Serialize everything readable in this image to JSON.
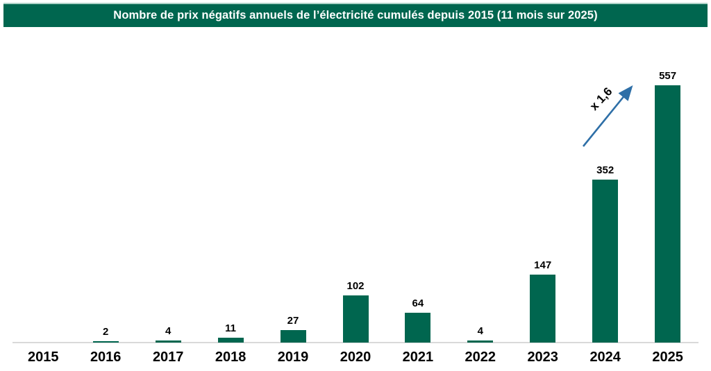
{
  "header": {
    "title": "Nombre de prix négatifs annuels de l’électricité cumulés depuis 2015 (11 mois sur 2025)"
  },
  "chart_data": {
    "type": "bar",
    "title": "Nombre de prix négatifs annuels de l’électricité cumulés depuis 2015 (11 mois sur 2025)",
    "categories": [
      "2015",
      "2016",
      "2017",
      "2018",
      "2019",
      "2020",
      "2021",
      "2022",
      "2023",
      "2024",
      "2025"
    ],
    "values": [
      0,
      2,
      4,
      11,
      27,
      102,
      64,
      4,
      147,
      352,
      557
    ],
    "xlabel": "",
    "ylabel": "",
    "ylim": [
      0,
      580
    ],
    "grid": false,
    "legend": "none",
    "value_labels_shown": true,
    "annotation": {
      "text": "x 1,6",
      "from_category": "2024",
      "to_category": "2025"
    },
    "colors": {
      "bar": "#00664F",
      "title_background": "#00664F",
      "title_text": "#FFFFFF",
      "title_top_edge": "#AFD3C8",
      "axis_line": "#D9D9D9",
      "arrow": "#2E6FA7",
      "label_text": "#000000"
    }
  }
}
